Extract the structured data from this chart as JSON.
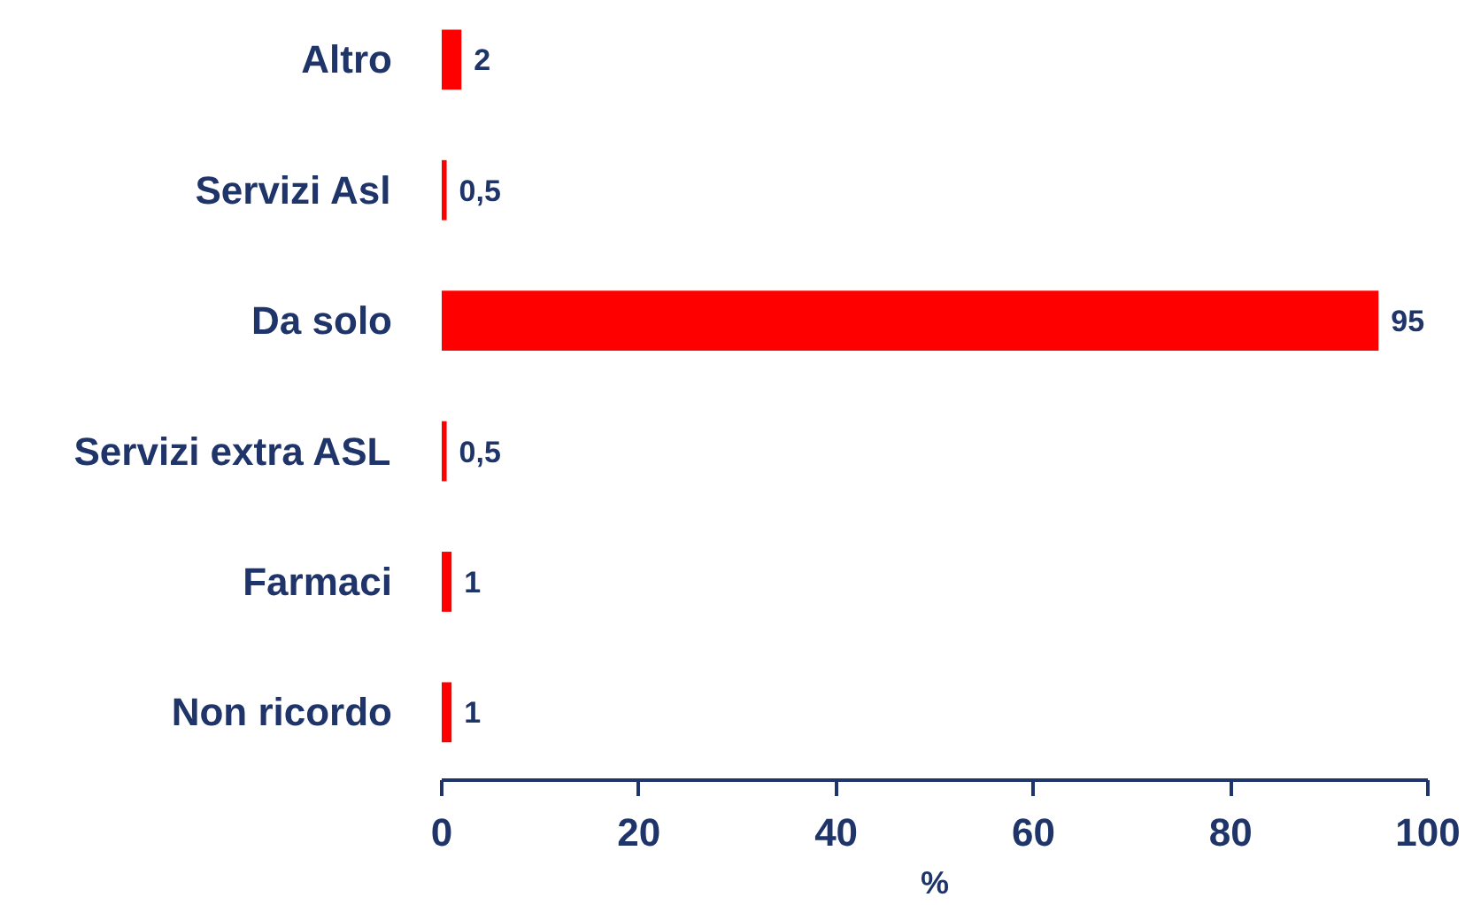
{
  "chart_data": {
    "type": "bar",
    "orientation": "horizontal",
    "categories": [
      "Altro",
      "Servizi Asl",
      "Da solo",
      "Servizi extra ASL",
      "Farmaci",
      "Non ricordo"
    ],
    "values": [
      2,
      0.5,
      95,
      0.5,
      1,
      1
    ],
    "color": "#ff0000",
    "value_labels": [
      "2",
      "0,5",
      "95",
      "0,5",
      "1",
      "1"
    ],
    "xlim": [
      0,
      100
    ],
    "xticks": [
      0,
      20,
      40,
      60,
      80,
      100
    ],
    "xlabel": "%",
    "grid": false
  }
}
